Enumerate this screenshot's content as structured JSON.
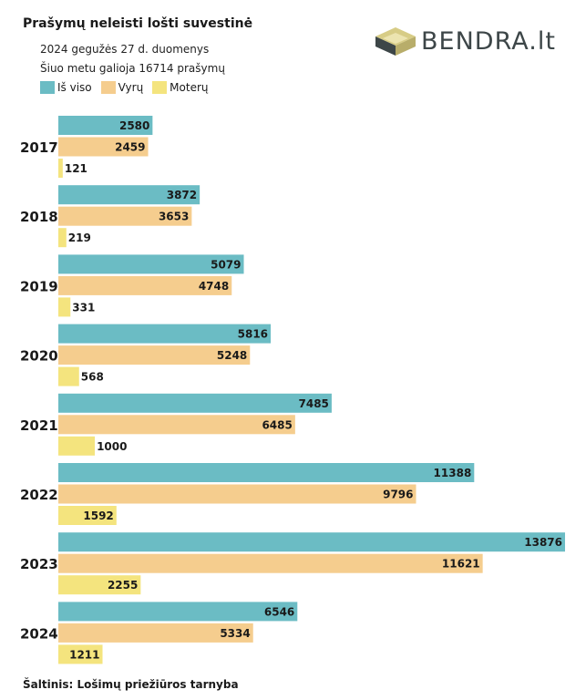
{
  "title": "Prašymų neleisti lošti suvestinė",
  "subtitle_1": "2024 gegužės 27 d. duomenys",
  "subtitle_2": "Šiuo metu galioja 16714 prašymų",
  "logo_text": "BENDRA.lt",
  "source": "Šaltinis: Lošimų priežiūros tarnyba",
  "colors": {
    "total": "#6bbcc4",
    "men": "#f5cd8e",
    "women": "#f4e47e"
  },
  "chart_data": {
    "type": "bar",
    "orientation": "horizontal",
    "categories": [
      "2017",
      "2018",
      "2019",
      "2020",
      "2021",
      "2022",
      "2023",
      "2024"
    ],
    "series": [
      {
        "name": "Iš viso",
        "values": [
          2580,
          3872,
          5079,
          5816,
          7485,
          11388,
          13876,
          6546
        ]
      },
      {
        "name": "Vyrų",
        "values": [
          2459,
          3653,
          4748,
          5248,
          6485,
          9796,
          11621,
          5334
        ]
      },
      {
        "name": "Moterų",
        "values": [
          121,
          219,
          331,
          568,
          1000,
          1592,
          2255,
          1211
        ]
      }
    ],
    "xlim": [
      0,
      13876
    ],
    "legend_position": "top-left",
    "grid": false
  }
}
